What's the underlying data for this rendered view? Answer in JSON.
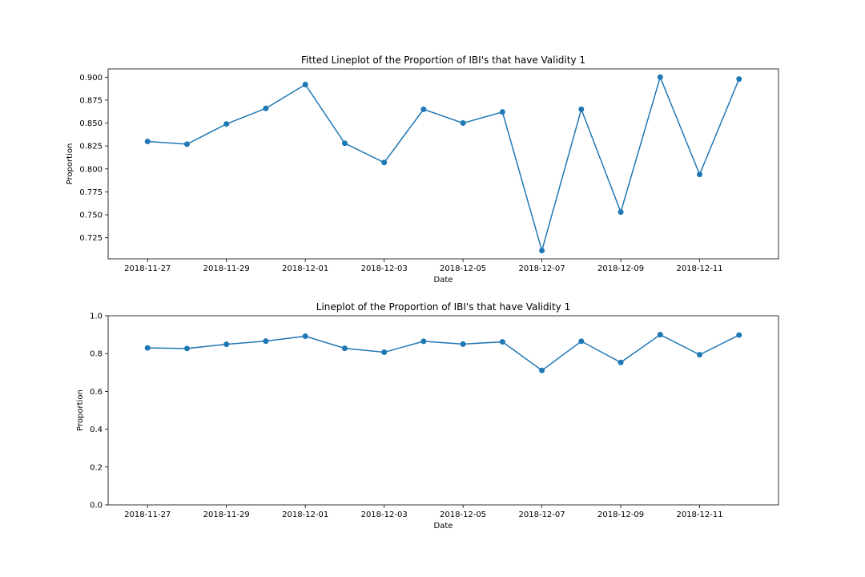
{
  "chart_data": [
    {
      "type": "line",
      "title": "Fitted Lineplot of the Proportion of IBI's that have Validity 1",
      "xlabel": "Date",
      "ylabel": "Proportion",
      "x": [
        "2018-11-27",
        "2018-11-28",
        "2018-11-29",
        "2018-11-30",
        "2018-12-01",
        "2018-12-02",
        "2018-12-03",
        "2018-12-04",
        "2018-12-05",
        "2018-12-06",
        "2018-12-07",
        "2018-12-08",
        "2018-12-09",
        "2018-12-10",
        "2018-12-11",
        "2018-12-12"
      ],
      "series": [
        {
          "values": [
            0.83,
            0.827,
            0.849,
            0.866,
            0.892,
            0.828,
            0.807,
            0.865,
            0.85,
            0.862,
            0.711,
            0.865,
            0.753,
            0.9,
            0.794,
            0.898
          ],
          "marker": "circle",
          "color": "#1f77b4"
        }
      ],
      "xlim": [
        "2018-11-26",
        "2018-12-13"
      ],
      "ylim": [
        0.702,
        0.909
      ],
      "xticks": [
        "2018-11-27",
        "2018-11-29",
        "2018-12-01",
        "2018-12-03",
        "2018-12-05",
        "2018-12-07",
        "2018-12-09",
        "2018-12-11"
      ],
      "yticks": [
        "0.725",
        "0.750",
        "0.775",
        "0.800",
        "0.825",
        "0.850",
        "0.875",
        "0.900"
      ],
      "grid": false,
      "legend": null
    },
    {
      "type": "line",
      "title": "Lineplot of the Proportion of IBI's that have Validity 1",
      "xlabel": "Date",
      "ylabel": "Proportion",
      "x": [
        "2018-11-27",
        "2018-11-28",
        "2018-11-29",
        "2018-11-30",
        "2018-12-01",
        "2018-12-02",
        "2018-12-03",
        "2018-12-04",
        "2018-12-05",
        "2018-12-06",
        "2018-12-07",
        "2018-12-08",
        "2018-12-09",
        "2018-12-10",
        "2018-12-11",
        "2018-12-12"
      ],
      "series": [
        {
          "values": [
            0.83,
            0.827,
            0.849,
            0.866,
            0.892,
            0.828,
            0.807,
            0.865,
            0.85,
            0.862,
            0.711,
            0.865,
            0.753,
            0.9,
            0.794,
            0.898
          ],
          "marker": "circle",
          "color": "#1f77b4"
        }
      ],
      "xlim": [
        "2018-11-26",
        "2018-12-13"
      ],
      "ylim": [
        0,
        1.0
      ],
      "xticks": [
        "2018-11-27",
        "2018-11-29",
        "2018-12-01",
        "2018-12-03",
        "2018-12-05",
        "2018-12-07",
        "2018-12-09",
        "2018-12-11"
      ],
      "yticks": [
        "0.0",
        "0.2",
        "0.4",
        "0.6",
        "0.8",
        "1.0"
      ],
      "grid": false,
      "legend": null
    }
  ]
}
